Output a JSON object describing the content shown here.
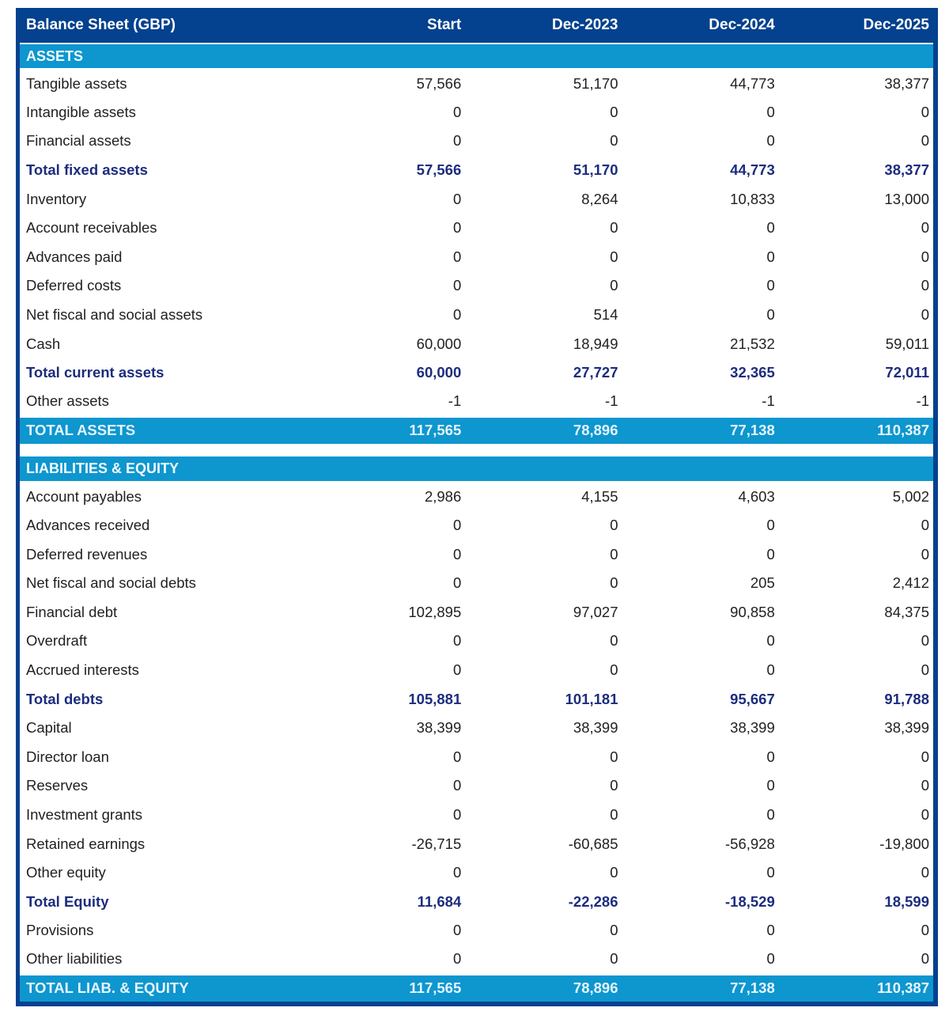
{
  "table": {
    "title": "Balance Sheet (GBP)",
    "columns": [
      "Start",
      "Dec-2023",
      "Dec-2024",
      "Dec-2025"
    ],
    "sections": [
      {
        "header": "ASSETS",
        "rows": [
          {
            "label": "Tangible assets",
            "style": "normal",
            "values": [
              "57,566",
              "51,170",
              "44,773",
              "38,377"
            ]
          },
          {
            "label": "Intangible assets",
            "style": "normal",
            "values": [
              "0",
              "0",
              "0",
              "0"
            ]
          },
          {
            "label": "Financial assets",
            "style": "normal",
            "values": [
              "0",
              "0",
              "0",
              "0"
            ]
          },
          {
            "label": "Total fixed assets",
            "style": "subtotal",
            "values": [
              "57,566",
              "51,170",
              "44,773",
              "38,377"
            ]
          },
          {
            "label": "Inventory",
            "style": "normal",
            "values": [
              "0",
              "8,264",
              "10,833",
              "13,000"
            ]
          },
          {
            "label": "Account receivables",
            "style": "normal",
            "values": [
              "0",
              "0",
              "0",
              "0"
            ]
          },
          {
            "label": "Advances paid",
            "style": "normal",
            "values": [
              "0",
              "0",
              "0",
              "0"
            ]
          },
          {
            "label": "Deferred costs",
            "style": "normal",
            "values": [
              "0",
              "0",
              "0",
              "0"
            ]
          },
          {
            "label": "Net fiscal and social assets",
            "style": "normal",
            "values": [
              "0",
              "514",
              "0",
              "0"
            ]
          },
          {
            "label": "Cash",
            "style": "normal",
            "values": [
              "60,000",
              "18,949",
              "21,532",
              "59,011"
            ]
          },
          {
            "label": "Total current assets",
            "style": "subtotal",
            "values": [
              "60,000",
              "27,727",
              "32,365",
              "72,011"
            ]
          },
          {
            "label": "Other assets",
            "style": "normal",
            "values": [
              "-1",
              "-1",
              "-1",
              "-1"
            ]
          }
        ],
        "total": {
          "label": "TOTAL ASSETS",
          "values": [
            "117,565",
            "78,896",
            "77,138",
            "110,387"
          ]
        }
      },
      {
        "header": "LIABILITIES & EQUITY",
        "rows": [
          {
            "label": "Account payables",
            "style": "normal",
            "values": [
              "2,986",
              "4,155",
              "4,603",
              "5,002"
            ]
          },
          {
            "label": "Advances received",
            "style": "normal",
            "values": [
              "0",
              "0",
              "0",
              "0"
            ]
          },
          {
            "label": "Deferred revenues",
            "style": "normal",
            "values": [
              "0",
              "0",
              "0",
              "0"
            ]
          },
          {
            "label": "Net fiscal and social debts",
            "style": "normal",
            "values": [
              "0",
              "0",
              "205",
              "2,412"
            ]
          },
          {
            "label": "Financial debt",
            "style": "normal",
            "values": [
              "102,895",
              "97,027",
              "90,858",
              "84,375"
            ]
          },
          {
            "label": "Overdraft",
            "style": "normal",
            "values": [
              "0",
              "0",
              "0",
              "0"
            ]
          },
          {
            "label": "Accrued interests",
            "style": "normal",
            "values": [
              "0",
              "0",
              "0",
              "0"
            ]
          },
          {
            "label": "Total debts",
            "style": "subtotal",
            "values": [
              "105,881",
              "101,181",
              "95,667",
              "91,788"
            ]
          },
          {
            "label": "Capital",
            "style": "normal",
            "values": [
              "38,399",
              "38,399",
              "38,399",
              "38,399"
            ]
          },
          {
            "label": "Director loan",
            "style": "normal",
            "values": [
              "0",
              "0",
              "0",
              "0"
            ]
          },
          {
            "label": "Reserves",
            "style": "normal",
            "values": [
              "0",
              "0",
              "0",
              "0"
            ]
          },
          {
            "label": "Investment grants",
            "style": "normal",
            "values": [
              "0",
              "0",
              "0",
              "0"
            ]
          },
          {
            "label": "Retained earnings",
            "style": "normal",
            "values": [
              "-26,715",
              "-60,685",
              "-56,928",
              "-19,800"
            ]
          },
          {
            "label": "Other equity",
            "style": "normal",
            "values": [
              "0",
              "0",
              "0",
              "0"
            ]
          },
          {
            "label": "Total Equity",
            "style": "subtotal",
            "values": [
              "11,684",
              "-22,286",
              "-18,529",
              "18,599"
            ]
          },
          {
            "label": "Provisions",
            "style": "normal",
            "values": [
              "0",
              "0",
              "0",
              "0"
            ]
          },
          {
            "label": "Other liabilities",
            "style": "normal",
            "values": [
              "0",
              "0",
              "0",
              "0"
            ]
          }
        ],
        "total": {
          "label": "TOTAL LIAB. & EQUITY",
          "values": [
            "117,565",
            "78,896",
            "77,138",
            "110,387"
          ]
        }
      }
    ],
    "colors": {
      "header_bg": "#04418e",
      "header_text": "#ffffff",
      "section_bg": "#0e96cf",
      "section_text": "#f2fbff",
      "total_text": "#e6f6fd",
      "body_text": "#212121",
      "subtotal_text": "#1c2c7e"
    }
  }
}
